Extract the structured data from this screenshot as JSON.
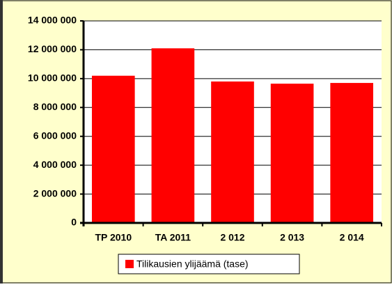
{
  "chart_data": {
    "type": "bar",
    "categories": [
      "TP 2010",
      "TA 2011",
      "2 012",
      "2 013",
      "2 014"
    ],
    "series": [
      {
        "name": "Tilikausien ylijäämä (tase)",
        "color": "#ff0000",
        "values": [
          10200000,
          12100000,
          9800000,
          9650000,
          9700000
        ]
      }
    ],
    "ylim": [
      0,
      14000000
    ],
    "yticks": [
      0,
      {
        "value": 2000000,
        "label": "2 000 000"
      },
      {
        "value": 4000000,
        "label": "4 000 000"
      },
      {
        "value": 6000000,
        "label": "6 000 000"
      },
      {
        "value": 8000000,
        "label": "8 000 000"
      },
      {
        "value": 10000000,
        "label": "10 000 000"
      },
      {
        "value": 12000000,
        "label": "12 000 000"
      },
      {
        "value": 14000000,
        "label": "14 000 000"
      }
    ],
    "grid": true,
    "legend": "bottom"
  }
}
